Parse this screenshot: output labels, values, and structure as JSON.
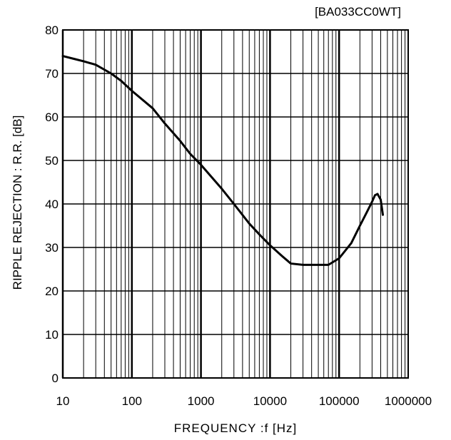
{
  "chart_data": {
    "type": "line",
    "title": "[BA033CC0WT]",
    "xlabel": "FREQUENCY :f [Hz]",
    "ylabel": "RIPPLE REJECTION : R.R. [dB]",
    "xscale": "log",
    "xlim": [
      10,
      1000000
    ],
    "ylim": [
      0,
      80
    ],
    "x_ticks": [
      10,
      100,
      1000,
      10000,
      100000,
      1000000
    ],
    "x_tick_labels": [
      "10",
      "100",
      "1000",
      "10000",
      "100000",
      "1000000"
    ],
    "y_ticks": [
      0,
      10,
      20,
      30,
      40,
      50,
      60,
      70,
      80
    ],
    "y_tick_labels": [
      "0",
      "10",
      "20",
      "30",
      "40",
      "50",
      "60",
      "70",
      "80"
    ],
    "grid": true,
    "series": [
      {
        "x": [
          10,
          15,
          20,
          30,
          50,
          70,
          100,
          200,
          300,
          500,
          700,
          1000,
          2000,
          3000,
          5000,
          7000,
          10000,
          15000,
          20000,
          30000,
          50000,
          70000,
          100000,
          150000,
          200000,
          250000,
          300000,
          330000,
          360000,
          400000,
          430000
        ],
        "y": [
          74,
          73.3,
          72.8,
          72,
          70,
          68.3,
          66,
          62,
          58.5,
          54.5,
          51.5,
          49,
          43.5,
          40,
          35.5,
          33,
          30.5,
          28,
          26.3,
          26,
          26,
          26,
          27.5,
          31,
          35,
          38,
          40.5,
          42,
          42.3,
          41,
          37.5
        ]
      }
    ],
    "colors": {
      "line": "#000000",
      "grid": "#000000",
      "background": "#ffffff"
    }
  }
}
